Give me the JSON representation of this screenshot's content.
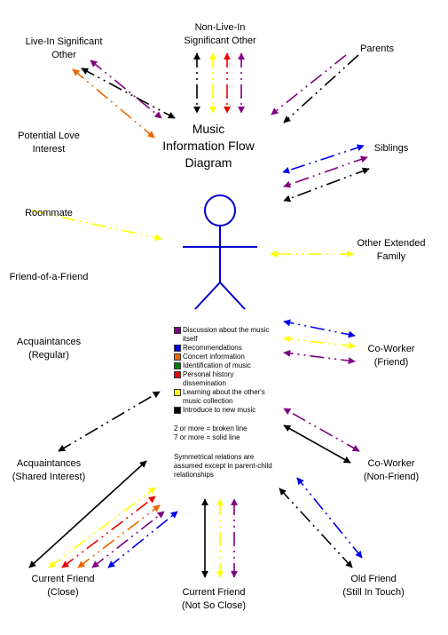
{
  "title": "Music\nInformation Flow\nDiagram",
  "colors": {
    "purple": "#800080",
    "blue": "#0000ee",
    "orange": "#ee6600",
    "green": "#008000",
    "red": "#ee0000",
    "yellow": "#ffff00",
    "black": "#000000",
    "figure": "#0000cc"
  },
  "labels": {
    "live_in": "Live-In Significant\nOther",
    "non_live_in": "Non-Live-In\nSignificant Other",
    "parents": "Parents",
    "potential_love": "Potential Love\nInterest",
    "siblings": "Siblings",
    "roommate": "Roommate",
    "other_extended": "Other Extended\nFamily",
    "friend_of_friend": "Friend-of-a-Friend",
    "acq_regular": "Acquaintances\n(Regular)",
    "coworker_friend": "Co-Worker\n(Friend)",
    "acq_shared": "Acquaintances\n(Shared Interest)",
    "coworker_nonfriend": "Co-Worker\n(Non-Friend)",
    "cf_close": "Current Friend\n(Close)",
    "cf_notclose": "Current Friend\n(Not So Close)",
    "old_friend": "Old Friend\n(Still In Touch)"
  },
  "legend": {
    "items": [
      {
        "color": "purple",
        "text": "Discussion about the music itself"
      },
      {
        "color": "blue",
        "text": "Recommendations"
      },
      {
        "color": "orange",
        "text": "Concert information"
      },
      {
        "color": "green",
        "text": "Identification of music"
      },
      {
        "color": "red",
        "text": "Personal history dissemination"
      },
      {
        "color": "yellow",
        "text": "Learning about the other's music collection"
      },
      {
        "color": "black",
        "text": "Introduce to new music"
      }
    ],
    "note_broken": "2 or more = broken line",
    "note_solid": "7 or more = solid line",
    "note_symmetric": "Symmetrical relations are assumed except in parent-child relationships"
  },
  "arrows": [
    {
      "from": "live_in",
      "color": "purple",
      "style": "broken",
      "heads": "both"
    },
    {
      "from": "live_in",
      "color": "black",
      "style": "broken",
      "heads": "both"
    },
    {
      "from": "live_in",
      "color": "orange",
      "style": "broken",
      "heads": "both"
    },
    {
      "from": "non_live_in",
      "color": "black",
      "style": "broken",
      "heads": "both"
    },
    {
      "from": "non_live_in",
      "color": "yellow",
      "style": "broken",
      "heads": "both"
    },
    {
      "from": "non_live_in",
      "color": "red",
      "style": "broken",
      "heads": "both"
    },
    {
      "from": "non_live_in",
      "color": "purple",
      "style": "broken",
      "heads": "both"
    },
    {
      "from": "parents",
      "color": "purple",
      "style": "broken",
      "heads": "one"
    },
    {
      "from": "parents",
      "color": "black",
      "style": "broken",
      "heads": "one"
    },
    {
      "from": "siblings",
      "color": "blue",
      "style": "broken",
      "heads": "both"
    },
    {
      "from": "siblings",
      "color": "purple",
      "style": "broken",
      "heads": "both"
    },
    {
      "from": "siblings",
      "color": "black",
      "style": "broken",
      "heads": "both"
    },
    {
      "from": "roommate",
      "color": "yellow",
      "style": "broken",
      "heads": "one"
    },
    {
      "from": "other_extended",
      "color": "yellow",
      "style": "broken",
      "heads": "both"
    },
    {
      "from": "coworker_friend",
      "color": "blue",
      "style": "broken",
      "heads": "both"
    },
    {
      "from": "coworker_friend",
      "color": "yellow",
      "style": "broken",
      "heads": "both"
    },
    {
      "from": "coworker_friend",
      "color": "purple",
      "style": "broken",
      "heads": "both"
    },
    {
      "from": "acq_shared",
      "color": "black",
      "style": "broken",
      "heads": "both"
    },
    {
      "from": "coworker_nonfriend",
      "color": "purple",
      "style": "broken",
      "heads": "both"
    },
    {
      "from": "coworker_nonfriend",
      "color": "black",
      "style": "solid",
      "heads": "both"
    },
    {
      "from": "cf_close",
      "color": "black",
      "style": "solid",
      "heads": "both"
    },
    {
      "from": "cf_close",
      "color": "yellow",
      "style": "broken",
      "heads": "both"
    },
    {
      "from": "cf_close",
      "color": "red",
      "style": "broken",
      "heads": "both"
    },
    {
      "from": "cf_close",
      "color": "orange",
      "style": "broken",
      "heads": "both"
    },
    {
      "from": "cf_close",
      "color": "purple",
      "style": "broken",
      "heads": "both"
    },
    {
      "from": "cf_close",
      "color": "blue",
      "style": "broken",
      "heads": "both"
    },
    {
      "from": "cf_notclose",
      "color": "black",
      "style": "solid",
      "heads": "both"
    },
    {
      "from": "cf_notclose",
      "color": "yellow",
      "style": "broken",
      "heads": "both"
    },
    {
      "from": "cf_notclose",
      "color": "purple",
      "style": "broken",
      "heads": "both"
    },
    {
      "from": "old_friend",
      "color": "black",
      "style": "broken",
      "heads": "both"
    },
    {
      "from": "old_friend",
      "color": "blue",
      "style": "broken",
      "heads": "both"
    }
  ]
}
